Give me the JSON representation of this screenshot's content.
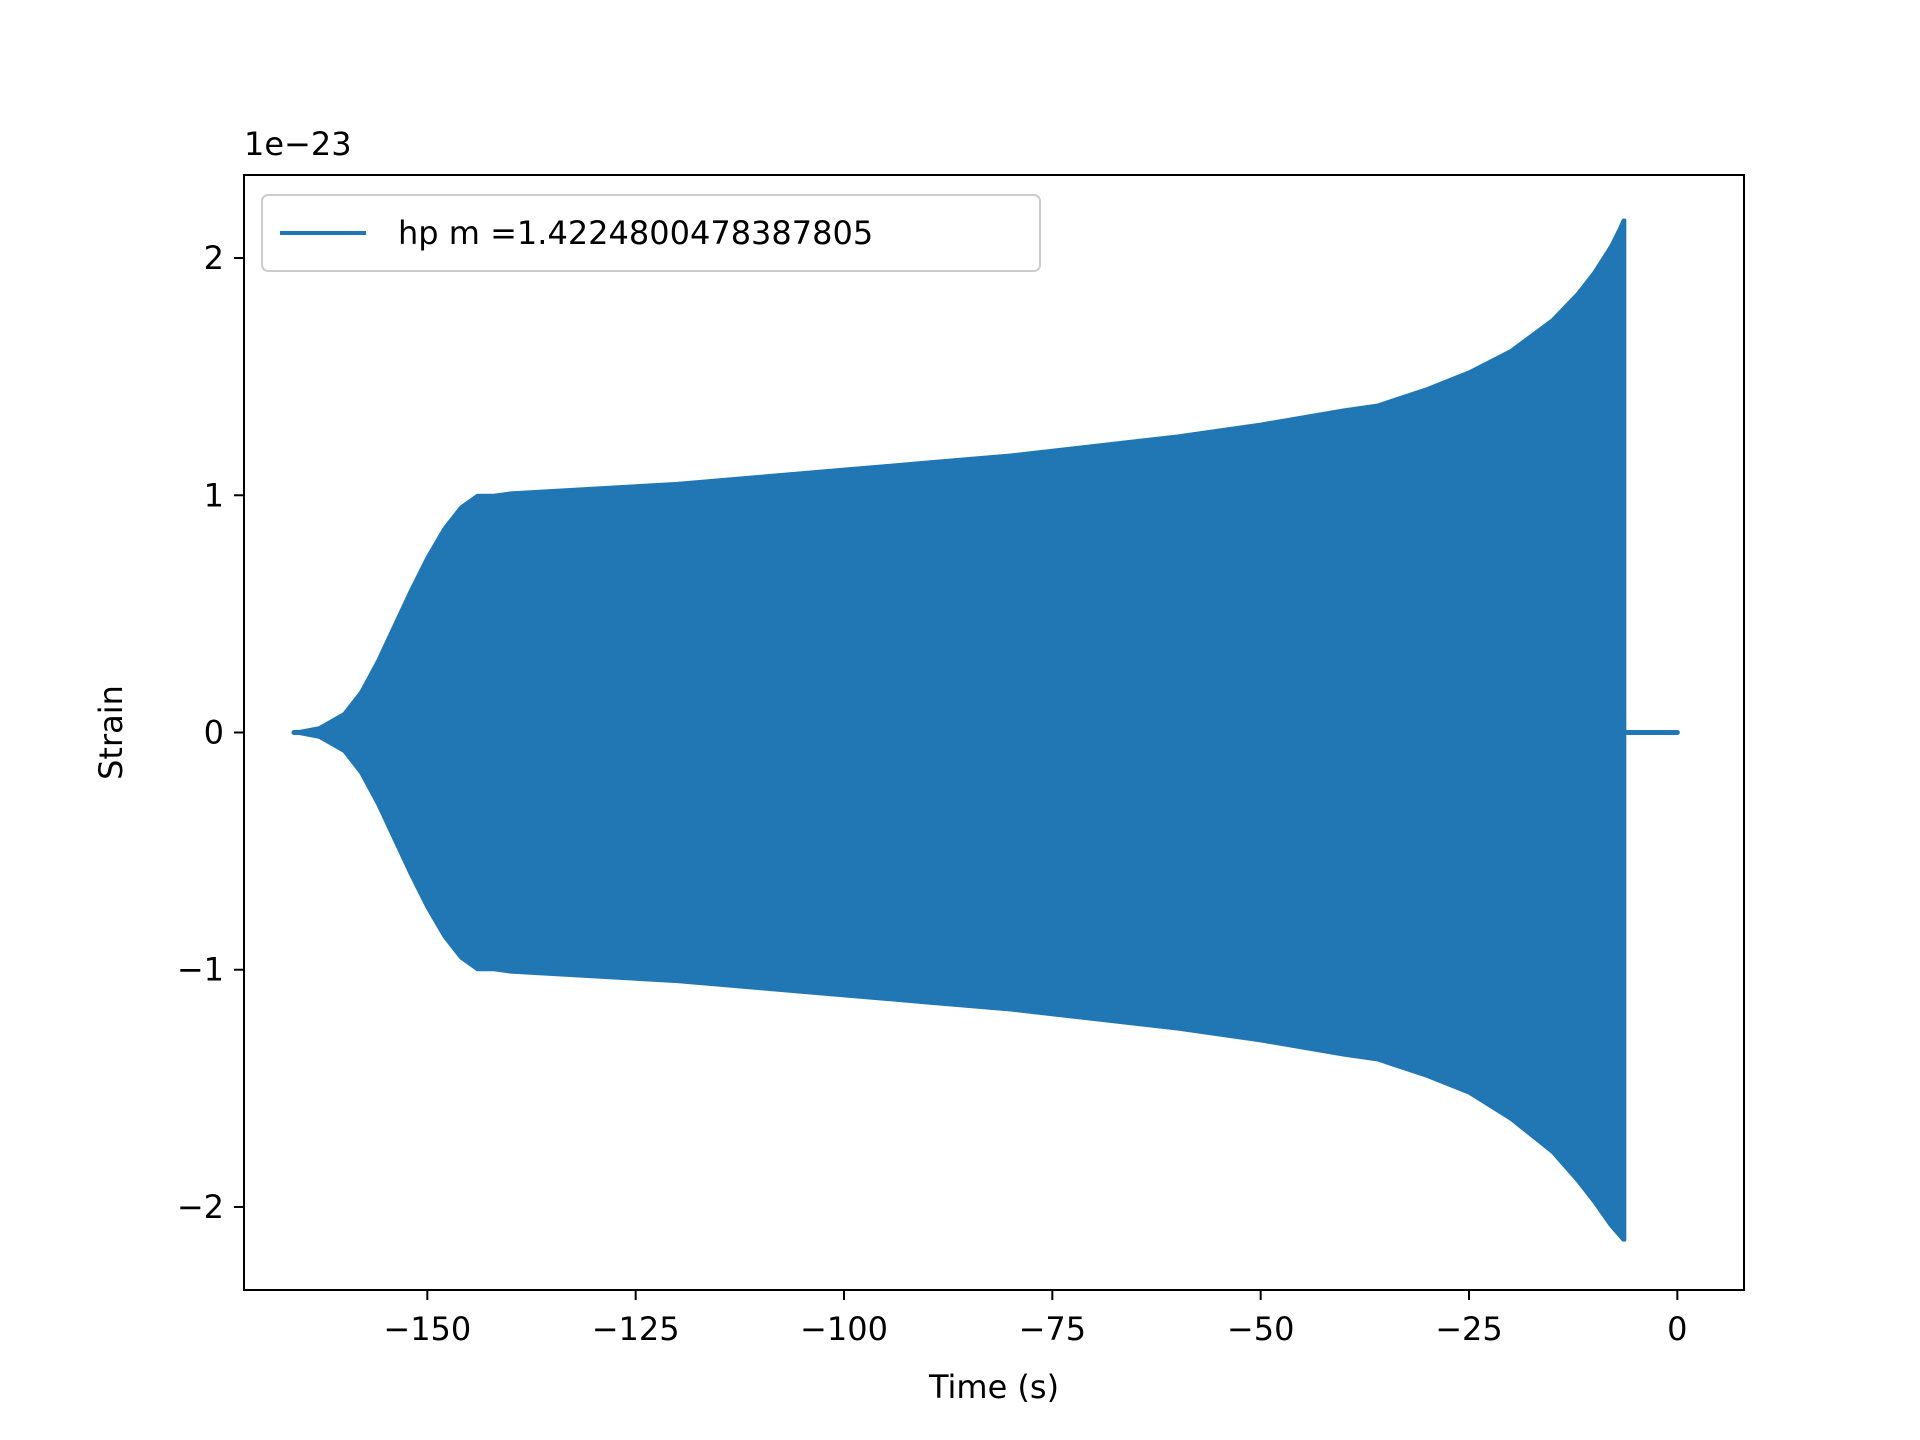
{
  "chart_data": {
    "type": "line",
    "title": "",
    "xlabel": "Time (s)",
    "ylabel": "Strain",
    "y_offset_label": "1e−23",
    "y_scale_factor": 1e-23,
    "xlim": [
      -172,
      8
    ],
    "ylim": [
      -2.35,
      2.35
    ],
    "x_ticks": [
      -150,
      -125,
      -100,
      -75,
      -50,
      -25,
      0
    ],
    "x_tick_labels": [
      "−150",
      "−125",
      "−100",
      "−75",
      "−50",
      "−25",
      "0"
    ],
    "y_ticks": [
      -2,
      -1,
      0,
      1,
      2
    ],
    "y_tick_labels": [
      "−2",
      "−1",
      "0",
      "1",
      "2"
    ],
    "grid": false,
    "legend_position": "top-left",
    "series": [
      {
        "name": "hp m =1.4224800478387805",
        "color": "#2176b4",
        "envelope": {
          "t": [
            -166,
            -163,
            -160,
            -158,
            -156,
            -154,
            -152,
            -150,
            -148,
            -146,
            -144,
            -142,
            -140,
            -130,
            -120,
            -110,
            -100,
            -90,
            -80,
            -70,
            -60,
            -50,
            -40,
            -36,
            -30,
            -25,
            -20,
            -15,
            -12,
            -10,
            -8,
            -7,
            -6.5,
            -6.3
          ],
          "upper": [
            0.0,
            0.02,
            0.08,
            0.17,
            0.3,
            0.45,
            0.6,
            0.74,
            0.86,
            0.95,
            1.0,
            1.0,
            1.01,
            1.03,
            1.05,
            1.08,
            1.11,
            1.14,
            1.17,
            1.21,
            1.25,
            1.3,
            1.36,
            1.38,
            1.45,
            1.52,
            1.61,
            1.74,
            1.85,
            1.94,
            2.05,
            2.12,
            2.16,
            2.16
          ],
          "lower": [
            0.0,
            -0.02,
            -0.08,
            -0.17,
            -0.3,
            -0.45,
            -0.6,
            -0.74,
            -0.86,
            -0.95,
            -1.0,
            -1.0,
            -1.01,
            -1.03,
            -1.05,
            -1.08,
            -1.11,
            -1.14,
            -1.17,
            -1.21,
            -1.25,
            -1.3,
            -1.36,
            -1.38,
            -1.45,
            -1.52,
            -1.63,
            -1.77,
            -1.89,
            -1.98,
            -2.08,
            -2.12,
            -2.14,
            -2.14
          ],
          "zero_tail": [
            -6,
            0
          ]
        }
      }
    ]
  }
}
